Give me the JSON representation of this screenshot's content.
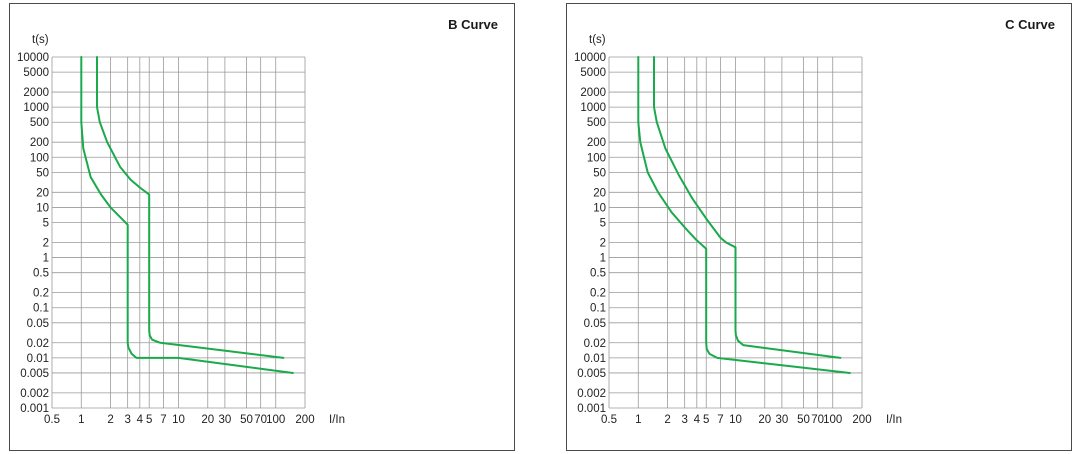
{
  "chart_data": [
    {
      "type": "line",
      "title": "B Curve",
      "xlabel": "I/In",
      "ylabel": "t(s)",
      "xscale": "log",
      "yscale": "log",
      "xlim": [
        0.5,
        200
      ],
      "ylim": [
        0.001,
        10000
      ],
      "x_ticks": [
        "0.5",
        "1",
        "2",
        "3",
        "4",
        "5",
        "7",
        "10",
        "20",
        "30",
        "50",
        "70",
        "100",
        "200"
      ],
      "x_tick_labels": [
        "0.5",
        "1",
        "2",
        "3",
        "4",
        "5",
        "7",
        "10",
        "20",
        "30",
        "50",
        "70",
        "100",
        "200"
      ],
      "y_ticks": [
        "0.001",
        "0.002",
        "0.005",
        "0.01",
        "0.02",
        "0.05",
        "0.1",
        "0.2",
        "0.5",
        "1",
        "2",
        "5",
        "10",
        "20",
        "50",
        "100",
        "200",
        "500",
        "1000",
        "2000",
        "5000",
        "10000"
      ],
      "grid": true,
      "line_color": "#1aaa4b",
      "series": [
        {
          "x": [
            1.0,
            1.0,
            1.05,
            1.25,
            1.6,
            2.0,
            2.6,
            3.0,
            3.0,
            3.05,
            3.3,
            3.7,
            10,
            150
          ],
          "y": [
            10000,
            500,
            150,
            40,
            18,
            10,
            6,
            4.5,
            0.02,
            0.016,
            0.012,
            0.01,
            0.01,
            0.005
          ]
        },
        {
          "x": [
            1.45,
            1.45,
            1.55,
            1.85,
            2.5,
            3.2,
            4.0,
            5.0,
            5.0,
            5.05,
            5.35,
            6.5,
            120
          ],
          "y": [
            10000,
            1000,
            500,
            200,
            65,
            36,
            25,
            18,
            0.035,
            0.028,
            0.023,
            0.02,
            0.01
          ]
        }
      ]
    },
    {
      "type": "line",
      "title": "C Curve",
      "xlabel": "I/In",
      "ylabel": "t(s)",
      "xscale": "log",
      "yscale": "log",
      "xlim": [
        0.5,
        200
      ],
      "ylim": [
        0.001,
        10000
      ],
      "x_ticks": [
        "0.5",
        "1",
        "2",
        "3",
        "4",
        "5",
        "7",
        "10",
        "20",
        "30",
        "50",
        "70",
        "100",
        "200"
      ],
      "x_tick_labels": [
        "0.5",
        "1",
        "2",
        "3",
        "4",
        "5",
        "7",
        "10",
        "20",
        "30",
        "50",
        "70",
        "100",
        "200"
      ],
      "y_ticks": [
        "0.001",
        "0.002",
        "0.005",
        "0.01",
        "0.02",
        "0.05",
        "0.1",
        "0.2",
        "0.5",
        "1",
        "2",
        "5",
        "10",
        "20",
        "50",
        "100",
        "200",
        "500",
        "1000",
        "2000",
        "5000",
        "10000"
      ],
      "grid": true,
      "line_color": "#1aaa4b",
      "series": [
        {
          "x": [
            1.0,
            1.0,
            1.05,
            1.25,
            1.6,
            2.2,
            3.0,
            4.0,
            5.0,
            5.0,
            5.05,
            5.4,
            6.5,
            150
          ],
          "y": [
            10000,
            500,
            200,
            50,
            20,
            8,
            4,
            2.2,
            1.5,
            0.02,
            0.015,
            0.012,
            0.01,
            0.005
          ]
        },
        {
          "x": [
            1.45,
            1.45,
            1.55,
            1.9,
            2.6,
            3.6,
            5.0,
            7.0,
            8.0,
            10.0,
            10.0,
            10.1,
            10.6,
            12.0,
            120
          ],
          "y": [
            10000,
            1000,
            500,
            150,
            45,
            15,
            6,
            2.5,
            2.0,
            1.6,
            0.035,
            0.028,
            0.022,
            0.018,
            0.01
          ]
        }
      ]
    }
  ]
}
